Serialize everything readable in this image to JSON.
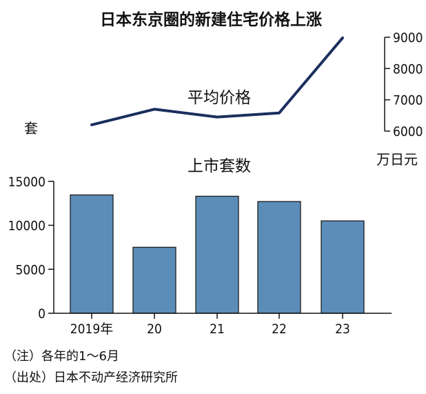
{
  "chart_data": {
    "title": "日本东京圈的新建住宅价格上涨",
    "categories": [
      "2019年",
      "20",
      "21",
      "22",
      "23"
    ],
    "price": {
      "type": "line",
      "label": "平均价格",
      "unit": "万日元",
      "values": [
        6200,
        6700,
        6450,
        6580,
        8980
      ],
      "ylim": [
        6000,
        9000
      ],
      "ticks": [
        "6000",
        "7000",
        "8000",
        "9000"
      ],
      "color": "#1b2f5e"
    },
    "units": {
      "type": "bar",
      "label": "上市套数",
      "unit": "套",
      "values": [
        13450,
        7500,
        13300,
        12700,
        10500
      ],
      "ylim": [
        0,
        16000
      ],
      "ticks": [
        "0",
        "5000",
        "10000",
        "15000"
      ],
      "color": "#5b8db8"
    },
    "notes": [
      "（注）各年的1～6月",
      "（出处）日本不动产经济研究所"
    ]
  }
}
